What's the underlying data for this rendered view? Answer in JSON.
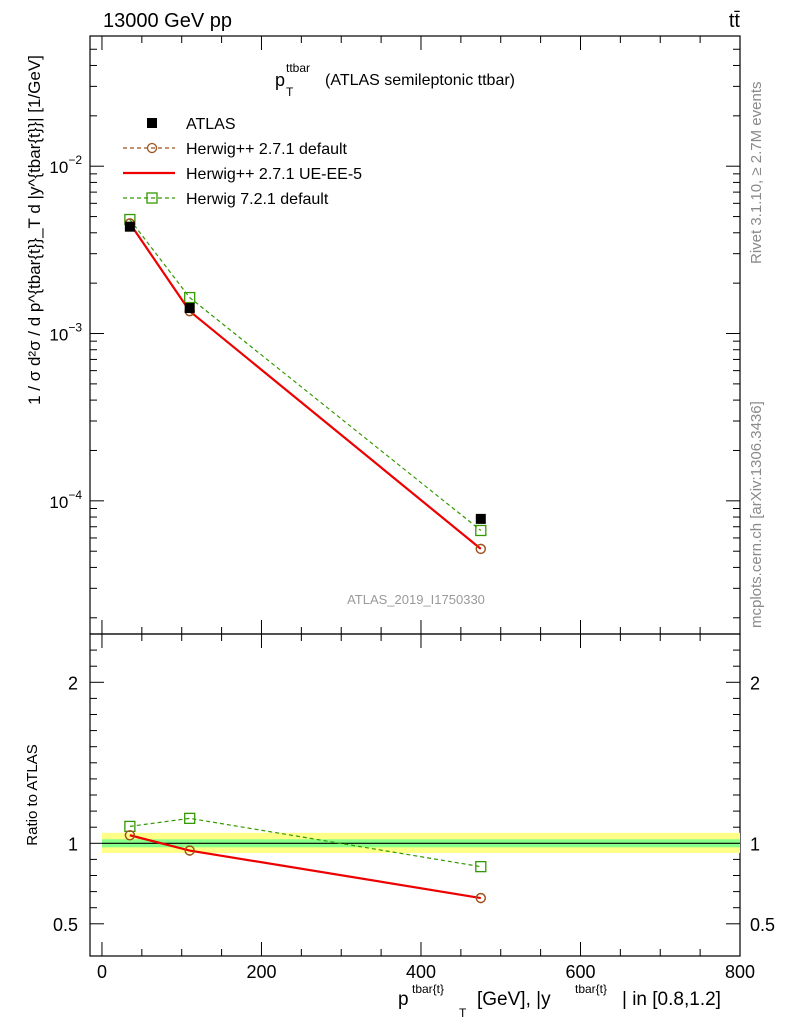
{
  "header": {
    "energy": "13000 GeV pp",
    "process": "tt̄"
  },
  "side_labels": {
    "rivet": "Rivet 3.1.10, ≥ 2.7M events",
    "mcplots": "mcplots.cern.ch [arXiv:1306.3436]"
  },
  "watermark": "ATLAS_2019_I1750330",
  "colors": {
    "atlas": "#000000",
    "herwig_default": "#a0521c",
    "herwig_ueee5": "#ee0000",
    "herwig721": "#339900",
    "band_inner": "#88ff88",
    "band_outer": "#ffff88"
  },
  "chart_data": [
    {
      "type": "line",
      "title_main": "p",
      "title_sup": "ttbar",
      "title_sub": "T",
      "title_rest": "(ATLAS semileptonic ttbar)",
      "ylabel": "1 / σ d²σ / d p^{tbar{t}}_T d |y^{tbar{t}}| [1/GeV]",
      "yscale": "log",
      "ylim": [
        1.6e-05,
        0.06
      ],
      "xlim": [
        -15,
        800
      ],
      "y_ticks": [
        {
          "value": 0.01,
          "base": "10",
          "exp": "−2"
        },
        {
          "value": 0.001,
          "base": "10",
          "exp": "−3"
        },
        {
          "value": 0.0001,
          "base": "10",
          "exp": "−4"
        }
      ],
      "legend_position": "top-left",
      "series": [
        {
          "name": "ATLAS",
          "key": "atlas",
          "x": [
            35,
            110,
            475
          ],
          "y": [
            0.00435,
            0.00142,
            7.8e-05
          ]
        },
        {
          "name": "Herwig++ 2.7.1 default",
          "key": "herwig_default",
          "x": [
            35,
            110,
            475
          ],
          "y": [
            0.00455,
            0.00136,
            5.16e-05
          ]
        },
        {
          "name": "Herwig++ 2.7.1 UE-EE-5",
          "key": "herwig_ueee5",
          "x": [
            35,
            110,
            475
          ],
          "y": [
            0.00455,
            0.00136,
            5.16e-05
          ]
        },
        {
          "name": "Herwig 7.2.1 default",
          "key": "herwig721",
          "x": [
            35,
            110,
            475
          ],
          "y": [
            0.0048,
            0.00164,
            6.65e-05
          ]
        }
      ]
    },
    {
      "type": "line",
      "ylabel": "Ratio to ATLAS",
      "xlabel_base": "p",
      "xlabel_rest": "[GeV], |y",
      "xlabel_end": "| in [0.8,1.2]",
      "xlabel_sup": "tbar{t}",
      "xlabel_sub": "T",
      "ylim": [
        0.3,
        2.3
      ],
      "xlim": [
        -15,
        800
      ],
      "x_ticks": [
        0,
        200,
        400,
        600,
        800
      ],
      "y_ticks": [
        0.5,
        1,
        2
      ],
      "band": {
        "x": [
          0,
          800
        ],
        "inner": [
          0.975,
          1.025
        ],
        "outer": [
          0.94,
          1.065
        ]
      },
      "series": [
        {
          "name": "Herwig++ 2.7.1 default",
          "key": "herwig_default",
          "x": [
            35,
            110,
            475
          ],
          "y": [
            1.05,
            0.955,
            0.66
          ]
        },
        {
          "name": "Herwig++ 2.7.1 UE-EE-5",
          "key": "herwig_ueee5",
          "x": [
            35,
            110,
            475
          ],
          "y": [
            1.05,
            0.955,
            0.66
          ]
        },
        {
          "name": "Herwig 7.2.1 default",
          "key": "herwig721",
          "x": [
            35,
            110,
            475
          ],
          "y": [
            1.105,
            1.155,
            0.855
          ]
        }
      ]
    }
  ]
}
